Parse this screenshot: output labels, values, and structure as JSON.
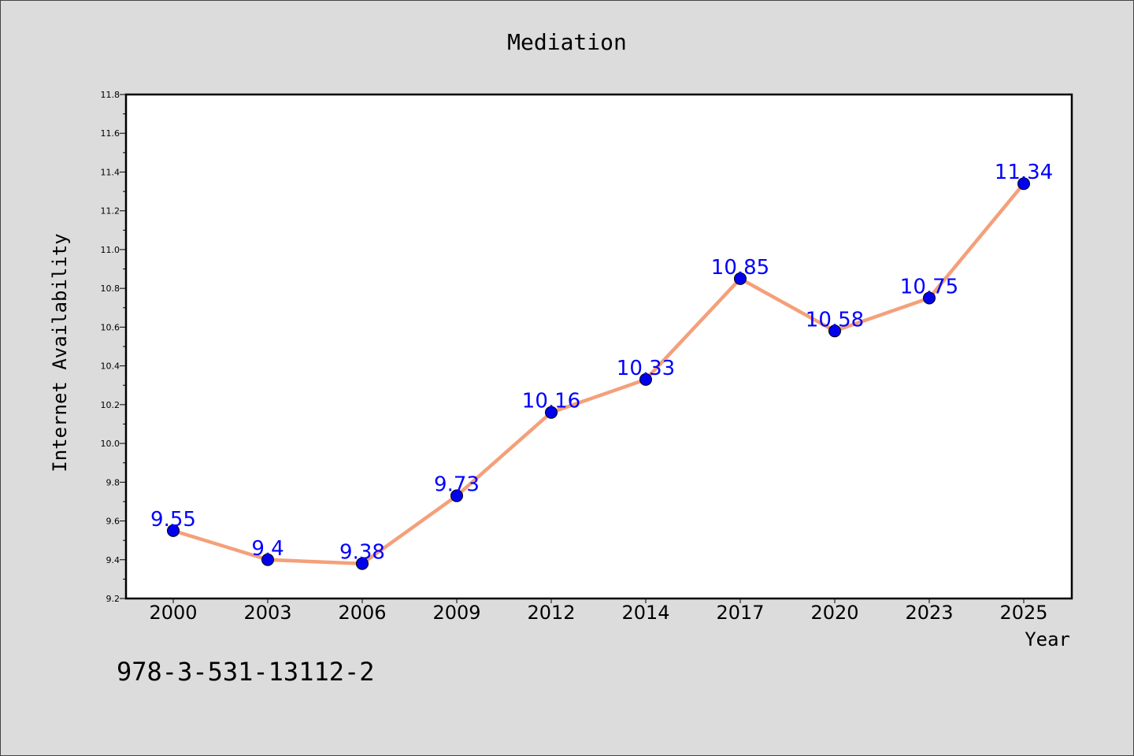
{
  "chart_data": {
    "type": "line",
    "title": "Mediation",
    "xlabel": "Year",
    "ylabel": "Internet Availability",
    "categories": [
      "2000",
      "2003",
      "2006",
      "2009",
      "2012",
      "2014",
      "2017",
      "2020",
      "2023",
      "2025"
    ],
    "series": [
      {
        "values": [
          9.55,
          9.4,
          9.38,
          9.73,
          10.16,
          10.33,
          10.85,
          10.58,
          10.75,
          11.34
        ],
        "labels": [
          "9.55",
          "9.4",
          "9.38",
          "9.73",
          "10.16",
          "10.33",
          "10.85",
          "10.58",
          "10.75",
          "11.34"
        ],
        "line_color": "#f4a07a",
        "marker_color": "#0000ee",
        "label_color": "#0000ff"
      }
    ],
    "ylim": [
      9.2,
      11.8
    ],
    "yticks": [
      "9.2",
      "9.4",
      "9.6",
      "9.8",
      "10.0",
      "10.2",
      "10.4",
      "10.6",
      "10.8",
      "11.0",
      "11.2",
      "11.4",
      "11.6",
      "11.8"
    ],
    "grid": false,
    "legend": "none",
    "plot_background": "#ffffff",
    "figure_background": "#dcdcdc"
  },
  "footnote": "978-3-531-13112-2"
}
